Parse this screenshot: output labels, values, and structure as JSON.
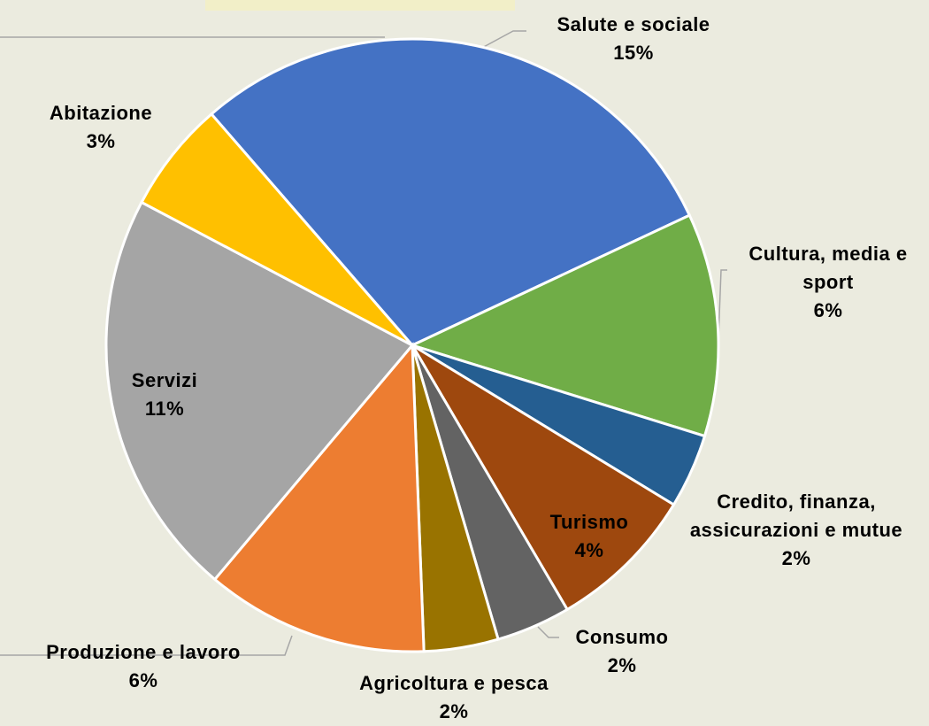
{
  "chart_data": {
    "type": "pie",
    "categories": [
      "Salute e sociale",
      "Cultura, media e sport",
      "Credito, finanza, assicurazioni e mutue",
      "Turismo",
      "Consumo",
      "Agricoltura e pesca",
      "Produzione e lavoro",
      "Servizi",
      "Abitazione"
    ],
    "values": [
      15,
      6,
      2,
      4,
      2,
      2,
      6,
      11,
      3
    ],
    "value_labels": [
      "15%",
      "6%",
      "2%",
      "4%",
      "2%",
      "2%",
      "6%",
      "11%",
      "3%"
    ],
    "colors": [
      "#4472c4",
      "#70ad47",
      "#255e91",
      "#9e480e",
      "#636363",
      "#997300",
      "#ed7d31",
      "#a5a5a5",
      "#ffc000"
    ]
  }
}
